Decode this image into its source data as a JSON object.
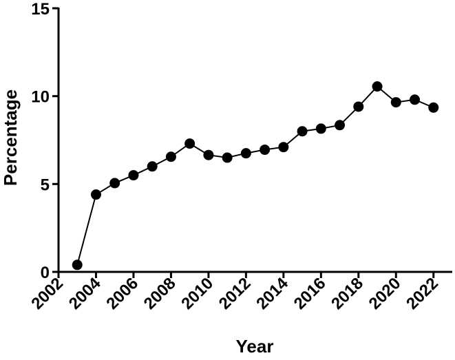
{
  "chart_data": {
    "type": "line",
    "x_label": "Year",
    "y_label": "Percentage",
    "x": [
      2003,
      2004,
      2005,
      2006,
      2007,
      2008,
      2009,
      2010,
      2011,
      2012,
      2013,
      2014,
      2015,
      2016,
      2017,
      2018,
      2019,
      2020,
      2021,
      2022
    ],
    "series": [
      {
        "color": "#000000",
        "values": [
          0.4,
          4.4,
          5.05,
          5.5,
          6.0,
          6.55,
          7.3,
          6.65,
          6.5,
          6.75,
          6.95,
          7.1,
          8.0,
          8.15,
          8.35,
          9.4,
          10.55,
          9.65,
          9.8,
          9.35
        ]
      }
    ],
    "xlim": [
      2002,
      2023
    ],
    "xticks": [
      2002,
      2004,
      2006,
      2008,
      2010,
      2012,
      2014,
      2016,
      2018,
      2020,
      2022
    ],
    "ylim": [
      0,
      15
    ],
    "yticks": [
      0,
      5,
      10,
      15
    ],
    "grid": false
  }
}
